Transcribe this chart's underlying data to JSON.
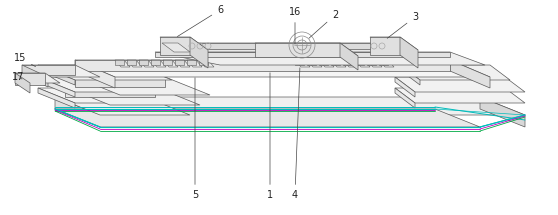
{
  "bg_color": "#ffffff",
  "lc": "#5a5a5a",
  "lw": 0.5,
  "fc_top": "#f5f5f5",
  "fc_side": "#e8e8e8",
  "fc_front": "#dcdcdc",
  "fc_dark": "#d0d0d0",
  "cyan": "#00bbbb",
  "magenta": "#bb00bb",
  "green": "#00aa44",
  "ann_color": "#222222",
  "figsize": [
    5.58,
    2.15
  ],
  "dpi": 100,
  "note_fs": 7
}
